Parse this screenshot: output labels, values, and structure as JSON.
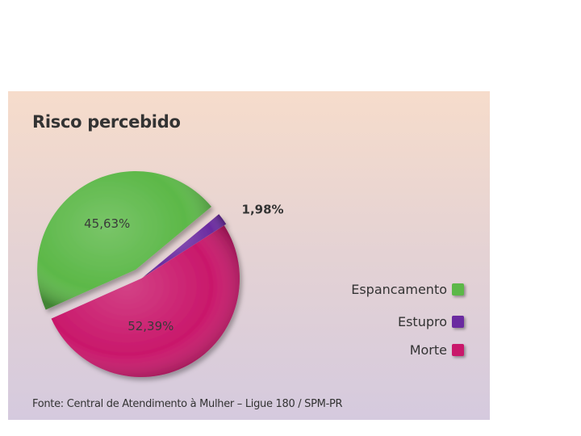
{
  "chart_data": {
    "type": "pie",
    "title": "Risco percebido",
    "slices": [
      {
        "label": "Espancamento",
        "value": 45.63,
        "value_label": "45,63%",
        "color": "#5cb848"
      },
      {
        "label": "Estupro",
        "value": 1.98,
        "value_label": "1,98%",
        "color": "#6a2aa0"
      },
      {
        "label": "Morte",
        "value": 52.39,
        "value_label": "52,39%",
        "color": "#c9186b"
      }
    ],
    "legend_position": "right",
    "source": "Fonte: Central de Atendimento à Mulher – Ligue 180 / SPM-PR"
  }
}
